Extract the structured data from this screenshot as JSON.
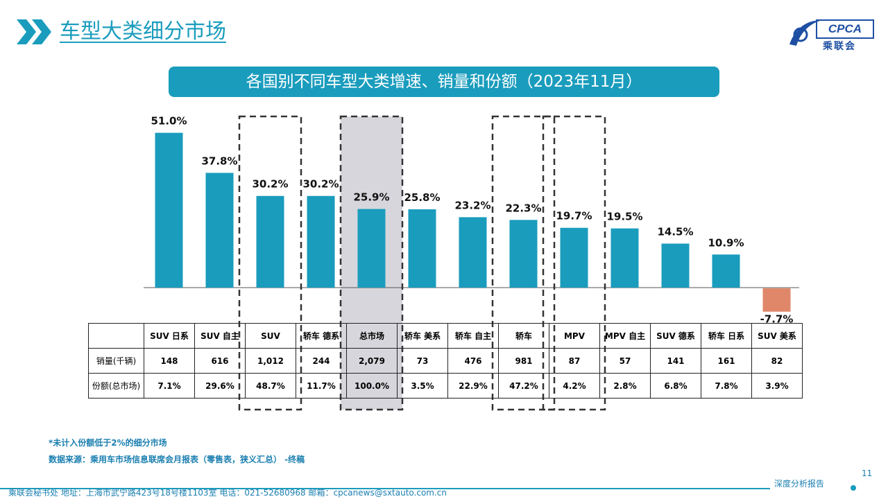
{
  "header": {
    "title": "车型大类细分市场"
  },
  "logo": {
    "abbr": "CPCA",
    "cn": "乘联会"
  },
  "banner": {
    "title": "各国别不同车型大类增速、销量和份额（2023年11月）"
  },
  "chart_data": {
    "type": "bar",
    "title": "各国别不同车型大类增速、销量和份额（2023年11月）",
    "categories": [
      "SUV 日系",
      "SUV 自主",
      "SUV",
      "轿车 德系",
      "总市场",
      "轿车 美系",
      "轿车 自主",
      "轿车",
      "MPV",
      "MPV 自主",
      "SUV 德系",
      "轿车 日系",
      "SUV 美系"
    ],
    "values": [
      51.0,
      37.8,
      30.2,
      30.2,
      25.9,
      25.8,
      23.2,
      22.3,
      19.7,
      19.5,
      14.5,
      10.9,
      -7.7
    ],
    "value_labels": [
      "51.0%",
      "37.8%",
      "30.2%",
      "30.2%",
      "25.9%",
      "25.8%",
      "23.2%",
      "22.3%",
      "19.7%",
      "19.5%",
      "14.5%",
      "10.9%",
      "-7.7%"
    ],
    "highlighted": [
      "SUV",
      "总市场",
      "轿车",
      "MPV"
    ],
    "shaded": [
      "总市场"
    ],
    "colors": {
      "positive": "#1a9cbd",
      "negative": "#e0876a",
      "shade": "#d6d6dc"
    }
  },
  "table": {
    "row_headers": [
      "",
      "销量(千辆)",
      "份额(总市场)"
    ],
    "sales": [
      "148",
      "616",
      "1,012",
      "244",
      "2,079",
      "73",
      "476",
      "981",
      "87",
      "57",
      "141",
      "161",
      "82"
    ],
    "share": [
      "7.1%",
      "29.6%",
      "48.7%",
      "11.7%",
      "100.0%",
      "3.5%",
      "22.9%",
      "47.2%",
      "4.2%",
      "2.8%",
      "6.8%",
      "7.8%",
      "3.9%"
    ]
  },
  "notes": {
    "line1": "*未计入份额低于2%的细分市场",
    "line2": "数据来源：乘用车市场信息联席会月报表（零售表，狭义汇总）   -终稿"
  },
  "footer": {
    "text": "乘联会秘书处    地址：上海市武宁路423号18号楼1103室    电话：021-52680968    邮箱：cpcanews@sxtauto.com.cn",
    "right": "深度分析报告",
    "page": "11"
  }
}
